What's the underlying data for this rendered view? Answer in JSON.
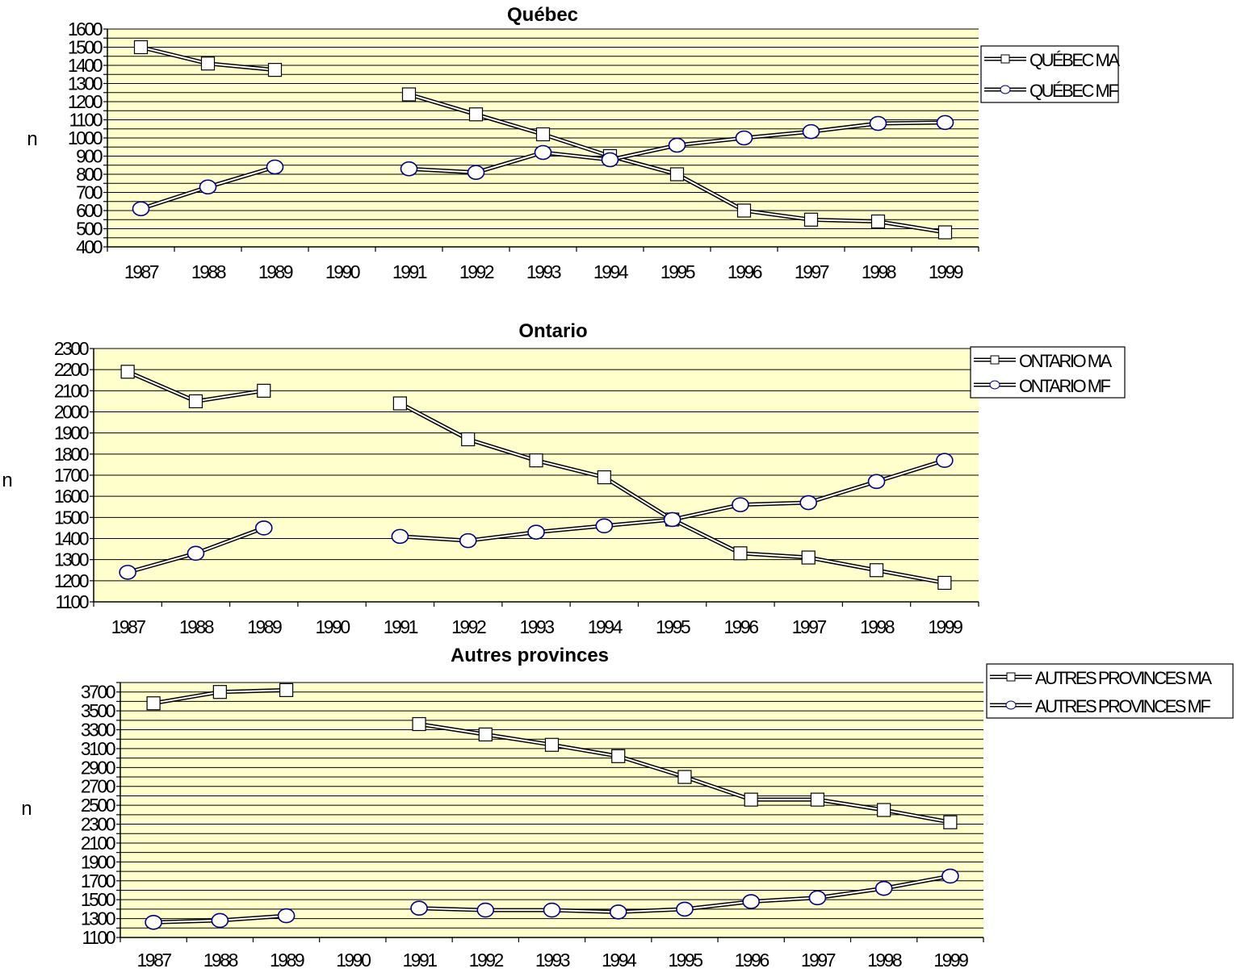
{
  "colors": {
    "plot_background": "#ffffcc",
    "gridline": "#000000",
    "series_line": "#000000",
    "marker_fill": "#ffffff",
    "circle_marker_fill": "#ffffff",
    "circle_marker_stroke": "#000080"
  },
  "chart_data": [
    {
      "type": "line",
      "title": "Québec",
      "xlabel": "",
      "ylabel": "n",
      "categories": [
        "1987",
        "1988",
        "1989",
        "1990",
        "1991",
        "1992",
        "1993",
        "1994",
        "1995",
        "1996",
        "1997",
        "1998",
        "1999"
      ],
      "ylim": [
        400,
        1600
      ],
      "ystep": 50,
      "yticks": [
        400,
        500,
        600,
        700,
        800,
        900,
        1000,
        1100,
        1200,
        1300,
        1400,
        1500,
        1600
      ],
      "grid": true,
      "legend": "right",
      "series": [
        {
          "name": "QUÉBEC MA",
          "marker": "square",
          "values": [
            1500,
            1410,
            1375,
            null,
            1240,
            1130,
            1020,
            900,
            800,
            600,
            550,
            540,
            480
          ]
        },
        {
          "name": "QUÉBEC MF",
          "marker": "circle",
          "values": [
            610,
            730,
            840,
            null,
            830,
            810,
            920,
            880,
            960,
            1000,
            1035,
            1080,
            1085
          ]
        }
      ]
    },
    {
      "type": "line",
      "title": "Ontario",
      "xlabel": "",
      "ylabel": "n",
      "categories": [
        "1987",
        "1988",
        "1989",
        "1990",
        "1991",
        "1992",
        "1993",
        "1994",
        "1995",
        "1996",
        "1997",
        "1998",
        "1999"
      ],
      "ylim": [
        1100,
        2300
      ],
      "ystep": 100,
      "yticks": [
        1100,
        1200,
        1300,
        1400,
        1500,
        1600,
        1700,
        1800,
        1900,
        2000,
        2100,
        2200,
        2300
      ],
      "grid": true,
      "legend": "top-right",
      "series": [
        {
          "name": "ONTARIO MA",
          "marker": "square",
          "values": [
            2190,
            2050,
            2100,
            null,
            2040,
            1870,
            1770,
            1690,
            1490,
            1330,
            1310,
            1250,
            1190
          ]
        },
        {
          "name": "ONTARIO MF",
          "marker": "circle",
          "values": [
            1240,
            1330,
            1450,
            null,
            1410,
            1390,
            1430,
            1460,
            1490,
            1560,
            1570,
            1670,
            1770
          ]
        }
      ]
    },
    {
      "type": "line",
      "title": "Autres provinces",
      "xlabel": "",
      "ylabel": "n",
      "categories": [
        "1987",
        "1988",
        "1989",
        "1990",
        "1991",
        "1992",
        "1993",
        "1994",
        "1995",
        "1996",
        "1997",
        "1998",
        "1999"
      ],
      "ylim": [
        1100,
        3800
      ],
      "ystep": 100,
      "yticks": [
        1100,
        1300,
        1500,
        1700,
        1900,
        2100,
        2300,
        2500,
        2700,
        2900,
        3100,
        3300,
        3500,
        3700
      ],
      "grid": true,
      "legend": "top-right",
      "series": [
        {
          "name": "AUTRES PROVINCES MA",
          "marker": "square",
          "values": [
            3580,
            3700,
            3720,
            null,
            3360,
            3250,
            3140,
            3020,
            2800,
            2560,
            2560,
            2450,
            2320
          ]
        },
        {
          "name": "AUTRES PROVINCES MF",
          "marker": "circle",
          "values": [
            1260,
            1280,
            1330,
            null,
            1410,
            1390,
            1390,
            1370,
            1400,
            1480,
            1520,
            1620,
            1750
          ]
        }
      ]
    }
  ]
}
